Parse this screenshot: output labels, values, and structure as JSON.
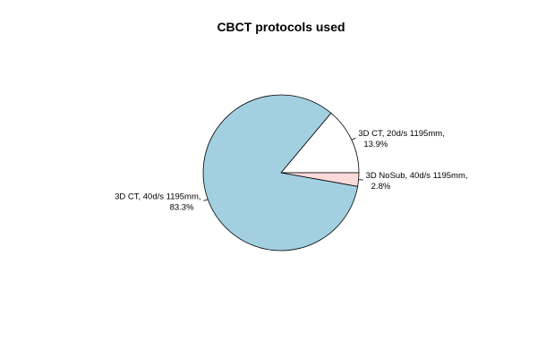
{
  "chart_data": {
    "type": "pie",
    "title": "CBCT protocols used",
    "slices": [
      {
        "label": "3D CT, 20d/s 1195mm,",
        "pct": "13.9%",
        "value": 13.9,
        "color": "#ffffff"
      },
      {
        "label": "3D CT, 40d/s 1195mm,",
        "pct": "83.3%",
        "value": 83.3,
        "color": "#a3d0e1"
      },
      {
        "label": "3D NoSub, 40d/s 1195mm,",
        "pct": "2.8%",
        "value": 2.8,
        "color": "#fcdada"
      }
    ]
  }
}
